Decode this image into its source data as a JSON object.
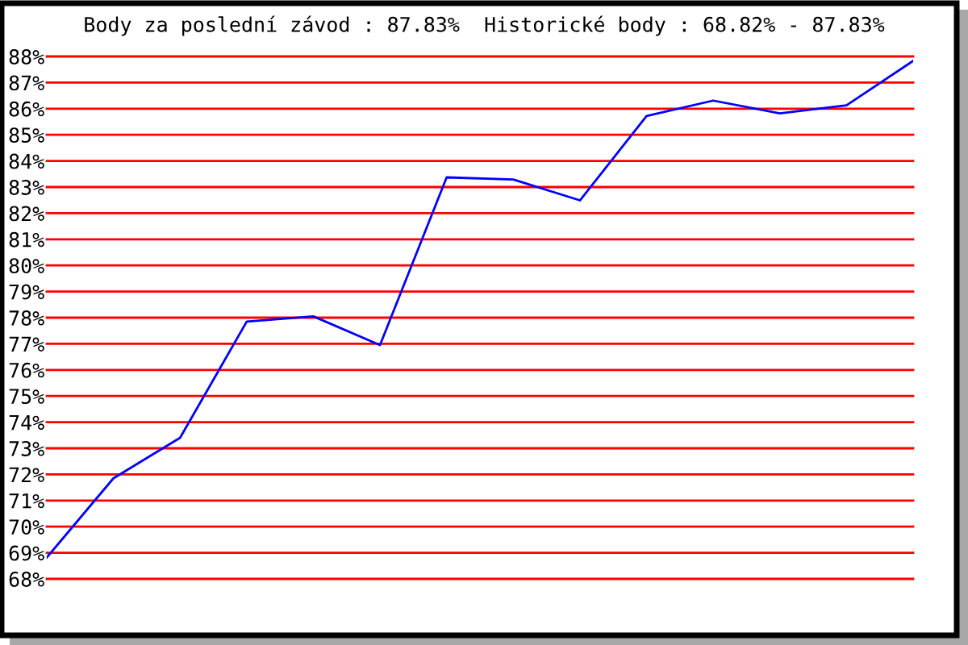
{
  "chart_data": {
    "type": "line",
    "title": "Body za poslední závod : 87.83%  Historické body : 68.82% - 87.83%",
    "categories": [
      null,
      null,
      null,
      null,
      null,
      null,
      null,
      null,
      null,
      null,
      null,
      null,
      null,
      null
    ],
    "series": [
      {
        "color": "#0000ff",
        "values": [
          68.82,
          71.85,
          73.4,
          77.85,
          78.05,
          76.95,
          83.37,
          83.29,
          82.49,
          85.72,
          86.31,
          85.82,
          86.13,
          87.83
        ]
      }
    ],
    "ylim": [
      68,
      88
    ],
    "yticks": [
      {
        "value": 68,
        "label": "68%"
      },
      {
        "value": 69,
        "label": "69%"
      },
      {
        "value": 70,
        "label": "70%"
      },
      {
        "value": 71,
        "label": "71%"
      },
      {
        "value": 72,
        "label": "72%"
      },
      {
        "value": 73,
        "label": "73%"
      },
      {
        "value": 74,
        "label": "74%"
      },
      {
        "value": 75,
        "label": "75%"
      },
      {
        "value": 76,
        "label": "76%"
      },
      {
        "value": 77,
        "label": "77%"
      },
      {
        "value": 78,
        "label": "78%"
      },
      {
        "value": 79,
        "label": "79%"
      },
      {
        "value": 80,
        "label": "80%"
      },
      {
        "value": 81,
        "label": "81%"
      },
      {
        "value": 82,
        "label": "82%"
      },
      {
        "value": 83,
        "label": "83%"
      },
      {
        "value": 84,
        "label": "84%"
      },
      {
        "value": 85,
        "label": "85%"
      },
      {
        "value": 86,
        "label": "86%"
      },
      {
        "value": 87,
        "label": "87%"
      },
      {
        "value": 88,
        "label": "88%"
      }
    ],
    "grid": "y",
    "tick_labels": "y",
    "marker": "none",
    "line_style": "solid"
  }
}
